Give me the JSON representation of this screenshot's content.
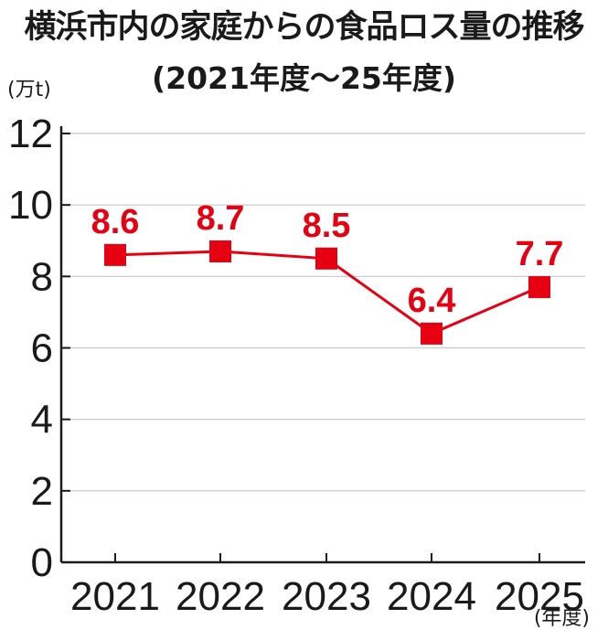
{
  "chart_data": {
    "type": "line",
    "title": "横浜市内の家庭からの食品ロス量の推移",
    "subtitle": "(2021年度～25年度)",
    "ylabel": "(万t)",
    "xlabel": "(年度)",
    "categories": [
      "2021",
      "2022",
      "2023",
      "2024",
      "2025"
    ],
    "series": [
      {
        "values": [
          8.6,
          8.7,
          8.5,
          6.4,
          7.7
        ]
      }
    ],
    "data_labels": [
      "8.6",
      "8.7",
      "8.5",
      "6.4",
      "7.7"
    ],
    "ylim": [
      0,
      12
    ],
    "yticks": [
      "0",
      "2",
      "4",
      "6",
      "8",
      "10",
      "12"
    ],
    "grid": true,
    "colors": {
      "series": "#e60012",
      "axis": "#1a1a1a",
      "grid": "#c8c8c8"
    }
  }
}
